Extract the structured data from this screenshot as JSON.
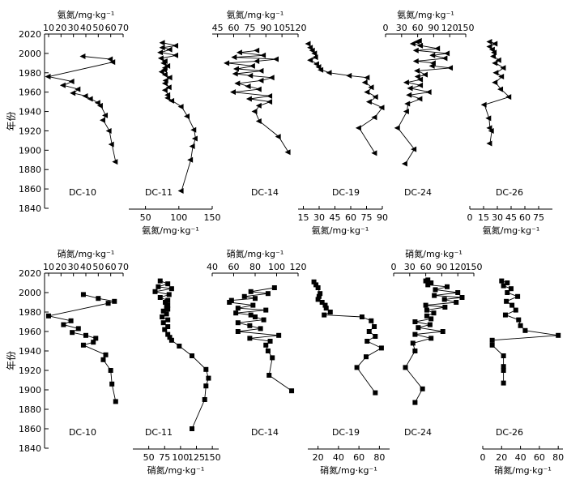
{
  "figure": {
    "y_axis_label": "年份",
    "y_ticks": [
      1840,
      1860,
      1880,
      1900,
      1920,
      1940,
      1960,
      1980,
      2000,
      2020
    ],
    "ylim": [
      1840,
      2020
    ]
  },
  "chart_data": [
    {
      "type": "line",
      "row": "ammonium",
      "panel": "DC-10",
      "axis_label": "氨氮/mg·kg⁻¹",
      "xlim": [
        10,
        70
      ],
      "x_ticks": [
        10,
        20,
        30,
        40,
        50,
        60,
        70
      ],
      "years": [
        1997,
        1994,
        1991,
        1976,
        1971,
        1967,
        1963,
        1959,
        1956,
        1953,
        1949,
        1946,
        1936,
        1931,
        1920,
        1906,
        1888
      ],
      "values": [
        38,
        60,
        62,
        10,
        29,
        22,
        34,
        30,
        40,
        44,
        50,
        52,
        56,
        54,
        59,
        61,
        64
      ]
    },
    {
      "type": "line",
      "row": "ammonium",
      "panel": "DC-11",
      "axis_label": "氨氮/mg·kg⁻¹",
      "xlim": [
        25,
        150
      ],
      "x_ticks": [
        50,
        100,
        150
      ],
      "years": [
        2011,
        2008,
        2006,
        2004,
        2001,
        1998,
        1995,
        1992,
        1990,
        1987,
        1985,
        1983,
        1981,
        1978,
        1975,
        1972,
        1969,
        1965,
        1962,
        1957,
        1954,
        1951,
        1945,
        1935,
        1921,
        1912,
        1904,
        1890,
        1858
      ],
      "values": [
        76,
        96,
        76,
        87,
        73,
        96,
        74,
        80,
        78,
        84,
        80,
        79,
        75,
        80,
        87,
        81,
        80,
        86,
        80,
        84,
        84,
        90,
        104,
        113,
        123,
        125,
        121,
        118,
        104
      ]
    },
    {
      "type": "line",
      "row": "ammonium",
      "panel": "DC-14",
      "axis_label": "氨氮/mg·kg⁻¹",
      "xlim": [
        40,
        120
      ],
      "x_ticks": [
        45,
        60,
        75,
        90,
        105,
        120
      ],
      "years": [
        2003,
        2001,
        1998,
        1996,
        1994,
        1992,
        1990,
        1987,
        1984,
        1982,
        1979,
        1977,
        1975,
        1972,
        1969,
        1966,
        1963,
        1960,
        1956,
        1953,
        1950,
        1946,
        1940,
        1930,
        1914,
        1898
      ],
      "values": [
        82,
        66,
        88,
        61,
        100,
        82,
        54,
        78,
        63,
        86,
        62,
        76,
        96,
        86,
        64,
        74,
        84,
        60,
        94,
        75,
        94,
        84,
        80,
        84,
        102,
        111
      ]
    },
    {
      "type": "line",
      "row": "ammonium",
      "panel": "DC-19",
      "axis_label": "氨氮/mg·kg⁻¹",
      "xlim": [
        10,
        90
      ],
      "x_ticks": [
        15,
        30,
        45,
        60,
        75,
        90
      ],
      "years": [
        2010,
        2006,
        2003,
        2000,
        1996,
        1993,
        1989,
        1986,
        1983,
        1980,
        1977,
        1975,
        1970,
        1965,
        1960,
        1955,
        1950,
        1944,
        1934,
        1923,
        1897
      ],
      "values": [
        20,
        22,
        24,
        26,
        27,
        22,
        28,
        30,
        32,
        40,
        59,
        76,
        74,
        80,
        76,
        84,
        78,
        90,
        83,
        68,
        83
      ]
    },
    {
      "type": "line",
      "row": "ammonium",
      "panel": "DC-24",
      "axis_label": "氨氮/mg·kg⁻¹",
      "xlim": [
        0,
        150
      ],
      "x_ticks": [
        0,
        30,
        60,
        90,
        120,
        150
      ],
      "years": [
        2013,
        2012,
        2010,
        2008,
        2005,
        2003,
        2000,
        1998,
        1995,
        1992,
        1990,
        1987,
        1985,
        1982,
        1978,
        1976,
        1973,
        1970,
        1967,
        1964,
        1960,
        1957,
        1953,
        1948,
        1940,
        1923,
        1901,
        1886
      ],
      "values": [
        64,
        60,
        52,
        66,
        98,
        58,
        116,
        89,
        112,
        58,
        90,
        88,
        122,
        60,
        75,
        61,
        66,
        40,
        66,
        47,
        82,
        45,
        65,
        42,
        40,
        23,
        54,
        37
      ]
    },
    {
      "type": "line",
      "row": "ammonium",
      "panel": "DC-26",
      "axis_label": "氨氮/mg·kg⁻¹",
      "xlim": [
        0,
        90
      ],
      "x_ticks": [
        0,
        15,
        30,
        45,
        60,
        75
      ],
      "years": [
        2012,
        2010,
        2007,
        2004,
        2001,
        1997,
        1993,
        1990,
        1985,
        1980,
        1976,
        1970,
        1963,
        1955,
        1947,
        1933,
        1923,
        1920,
        1907
      ],
      "values": [
        22,
        28,
        22,
        25,
        27,
        26,
        32,
        28,
        37,
        29,
        35,
        28,
        34,
        43,
        16,
        21,
        22,
        24,
        22
      ]
    },
    {
      "type": "line",
      "row": "nitrate",
      "panel": "DC-10",
      "axis_label": "硝氮/mg·kg⁻¹",
      "xlim": [
        10,
        70
      ],
      "x_ticks": [
        10,
        20,
        30,
        40,
        50,
        60,
        70
      ],
      "years": [
        1998,
        1994,
        1991,
        1989,
        1976,
        1971,
        1967,
        1963,
        1959,
        1956,
        1953,
        1949,
        1946,
        1936,
        1931,
        1920,
        1906,
        1888
      ],
      "values": [
        38,
        50,
        63,
        58,
        10,
        28,
        22,
        34,
        29,
        40,
        48,
        46,
        38,
        56,
        54,
        60,
        61,
        64
      ]
    },
    {
      "type": "line",
      "row": "nitrate",
      "panel": "DC-11",
      "axis_label": "硝氮/mg·kg⁻¹",
      "xlim": [
        25,
        160
      ],
      "x_ticks": [
        50,
        75,
        100,
        125,
        150
      ],
      "years": [
        2012,
        2009,
        2006,
        2004,
        2001,
        1998,
        1995,
        1992,
        1990,
        1987,
        1985,
        1983,
        1981,
        1978,
        1975,
        1972,
        1969,
        1965,
        1962,
        1957,
        1954,
        1951,
        1945,
        1935,
        1921,
        1912,
        1904,
        1890,
        1860
      ],
      "values": [
        68,
        80,
        65,
        86,
        60,
        82,
        68,
        80,
        76,
        80,
        78,
        80,
        73,
        78,
        71,
        80,
        73,
        80,
        75,
        80,
        83,
        86,
        98,
        118,
        140,
        144,
        140,
        138,
        118
      ]
    },
    {
      "type": "line",
      "row": "nitrate",
      "panel": "DC-14",
      "axis_label": "硝氮/mg·kg⁻¹",
      "xlim": [
        40,
        120
      ],
      "x_ticks": [
        40,
        60,
        80,
        100,
        120
      ],
      "years": [
        2005,
        2001,
        1999,
        1996,
        1994,
        1992,
        1990,
        1987,
        1984,
        1982,
        1979,
        1977,
        1975,
        1972,
        1969,
        1966,
        1963,
        1960,
        1956,
        1953,
        1950,
        1946,
        1940,
        1933,
        1915,
        1899
      ],
      "values": [
        98,
        76,
        92,
        70,
        80,
        58,
        56,
        78,
        64,
        90,
        62,
        76,
        80,
        88,
        64,
        75,
        85,
        64,
        102,
        75,
        94,
        90,
        92,
        96,
        93,
        114
      ]
    },
    {
      "type": "line",
      "row": "nitrate",
      "panel": "DC-19",
      "axis_label": "硝氮/mg·kg⁻¹",
      "xlim": [
        10,
        90
      ],
      "x_ticks": [
        20,
        40,
        60,
        80
      ],
      "years": [
        2011,
        2008,
        2005,
        1999,
        1996,
        1993,
        1990,
        1987,
        1984,
        1980,
        1977,
        1975,
        1971,
        1965,
        1960,
        1955,
        1950,
        1943,
        1934,
        1923,
        1897
      ],
      "values": [
        16,
        18,
        20,
        22,
        21,
        20,
        24,
        27,
        28,
        32,
        26,
        63,
        72,
        75,
        70,
        76,
        68,
        82,
        67,
        58,
        76
      ]
    },
    {
      "type": "line",
      "row": "nitrate",
      "panel": "DC-24",
      "axis_label": "硝氮/mg·kg⁻¹",
      "xlim": [
        0,
        150
      ],
      "x_ticks": [
        0,
        30,
        60,
        90,
        120,
        150
      ],
      "years": [
        2013,
        2012,
        2010,
        2008,
        2006,
        2003,
        2000,
        1997,
        1995,
        1993,
        1990,
        1987,
        1985,
        1982,
        1979,
        1976,
        1973,
        1970,
        1967,
        1964,
        1960,
        1957,
        1953,
        1948,
        1940,
        1923,
        1901,
        1887
      ],
      "values": [
        64,
        60,
        70,
        64,
        100,
        78,
        120,
        76,
        128,
        95,
        117,
        60,
        96,
        62,
        75,
        62,
        70,
        40,
        68,
        46,
        92,
        40,
        70,
        36,
        40,
        22,
        54,
        40
      ]
    },
    {
      "type": "line",
      "row": "nitrate",
      "panel": "DC-26",
      "axis_label": "硝氮/mg·kg⁻¹",
      "xlim": [
        0,
        85
      ],
      "x_ticks": [
        0,
        20,
        40,
        60,
        80
      ],
      "years": [
        2012,
        2010,
        2007,
        2004,
        2000,
        1996,
        1991,
        1987,
        1982,
        1977,
        1972,
        1966,
        1961,
        1956,
        1951,
        1946,
        1935,
        1924,
        1920,
        1907
      ],
      "values": [
        20,
        26,
        22,
        30,
        26,
        37,
        25,
        31,
        35,
        24,
        38,
        40,
        45,
        80,
        10,
        10,
        22,
        22,
        22,
        22
      ]
    }
  ]
}
